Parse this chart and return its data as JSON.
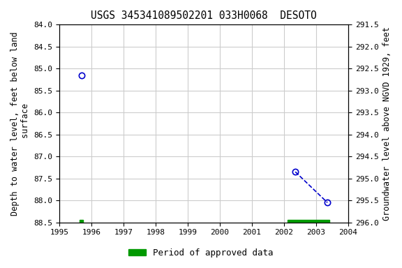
{
  "title": "USGS 345341089502201 033H0068  DESOTO",
  "ylabel_left": "Depth to water level, feet below land\n surface",
  "ylabel_right": "Groundwater level above NGVD 1929, feet",
  "xlim": [
    1995,
    2004
  ],
  "ylim_left": [
    84.0,
    88.5
  ],
  "ylim_right": [
    291.5,
    296.0
  ],
  "yticks_left": [
    84.0,
    84.5,
    85.0,
    85.5,
    86.0,
    86.5,
    87.0,
    87.5,
    88.0,
    88.5
  ],
  "yticks_right": [
    291.5,
    292.0,
    292.5,
    293.0,
    293.5,
    294.0,
    294.5,
    295.0,
    295.5,
    296.0
  ],
  "xticks": [
    1995,
    1996,
    1997,
    1998,
    1999,
    2000,
    2001,
    2002,
    2003,
    2004
  ],
  "data_points_x": [
    1995.7,
    2002.35,
    2003.35
  ],
  "data_points_y": [
    85.15,
    87.35,
    88.05
  ],
  "dashed_line_x": [
    2002.35,
    2003.35
  ],
  "dashed_line_y": [
    87.35,
    88.05
  ],
  "approved_bars": [
    {
      "x_start": 1995.63,
      "x_end": 1995.73
    },
    {
      "x_start": 2002.1,
      "x_end": 2003.42
    }
  ],
  "point_color": "#0000cc",
  "dashed_line_color": "#0000cc",
  "approved_color": "#009900",
  "grid_color": "#cccccc",
  "background_color": "#ffffff",
  "title_fontsize": 10.5,
  "axis_label_fontsize": 8.5,
  "tick_fontsize": 8,
  "legend_label": "Period of approved data",
  "legend_fontsize": 9
}
